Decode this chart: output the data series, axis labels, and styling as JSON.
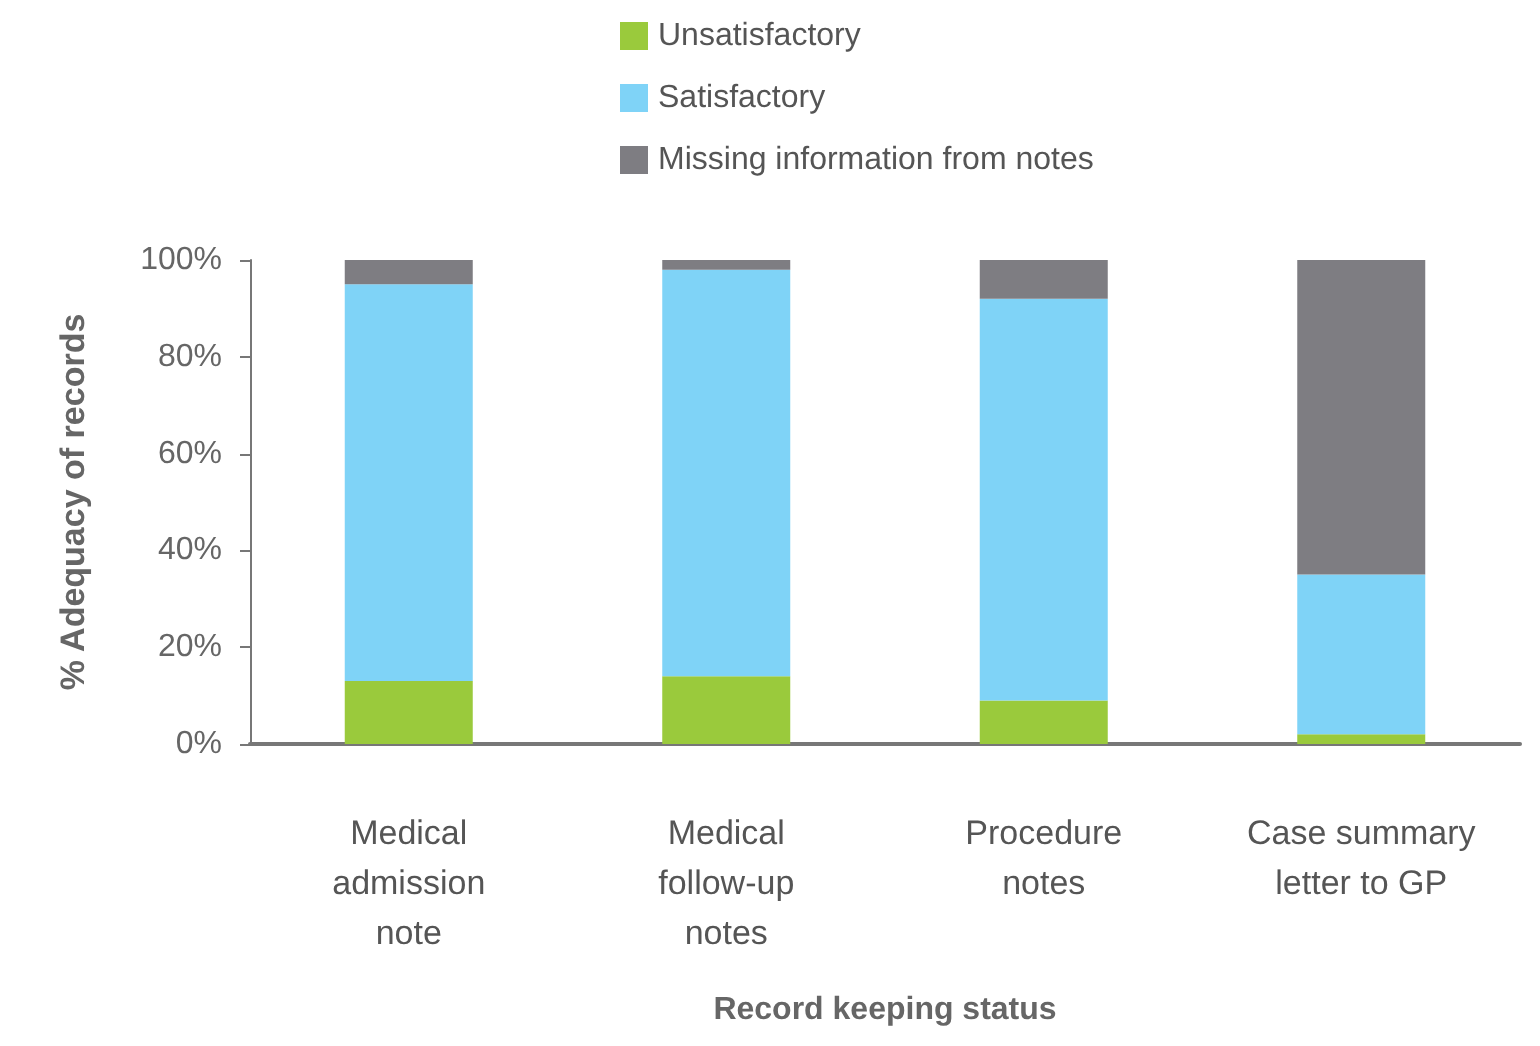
{
  "chart_data": {
    "type": "bar",
    "stacked": true,
    "xlabel": "Record keeping status",
    "ylabel": "% Adequacy of records",
    "categories": [
      "Medical admission note",
      "Medical follow-up notes",
      "Procedure notes",
      "Case summary letter to GP"
    ],
    "series": [
      {
        "name": "Unsatisfactory",
        "color": "#9aca3c",
        "values": [
          13,
          14,
          9,
          2
        ]
      },
      {
        "name": "Satisfactory",
        "color": "#7fd3f7",
        "values": [
          82,
          84,
          83,
          33
        ]
      },
      {
        "name": "Missing information from notes",
        "color": "#7e7d82",
        "values": [
          5,
          2,
          8,
          65
        ]
      }
    ],
    "ylim": [
      0,
      100
    ],
    "yticks": [
      {
        "value": 0,
        "label": "0%"
      },
      {
        "value": 20,
        "label": "20%"
      },
      {
        "value": 40,
        "label": "40%"
      },
      {
        "value": 60,
        "label": "60%"
      },
      {
        "value": 80,
        "label": "80%"
      },
      {
        "value": 100,
        "label": "100%"
      }
    ],
    "grid": false,
    "legend": "top"
  }
}
